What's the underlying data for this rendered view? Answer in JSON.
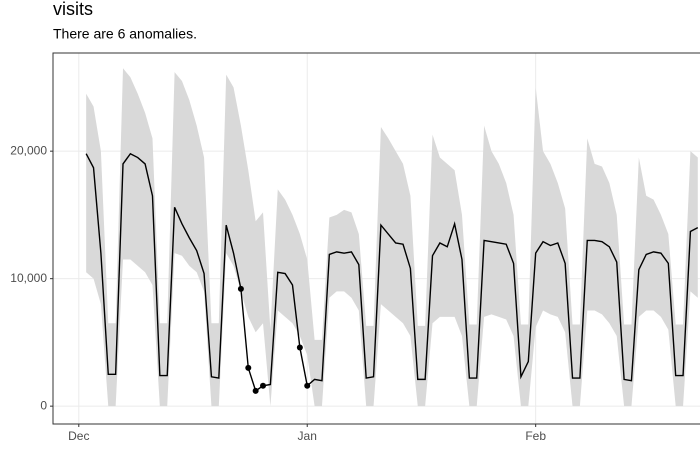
{
  "chart_data": {
    "type": "line",
    "title": "visits",
    "subtitle": "There are 6 anomalies.",
    "x": [
      1,
      2,
      3,
      4,
      5,
      6,
      7,
      8,
      9,
      10,
      11,
      12,
      13,
      14,
      15,
      16,
      17,
      18,
      19,
      20,
      21,
      22,
      23,
      24,
      25,
      26,
      27,
      28,
      29,
      30,
      31,
      32,
      33,
      34,
      35,
      36,
      37,
      38,
      39,
      40,
      41,
      42,
      43,
      44,
      45,
      46,
      47,
      48,
      49,
      50,
      51,
      52,
      53,
      54,
      55,
      56,
      57,
      58,
      59,
      60,
      61,
      62,
      63,
      64,
      65,
      66,
      67,
      68,
      69,
      70,
      71,
      72,
      73,
      74,
      75,
      76,
      77,
      78,
      79,
      80,
      81,
      82,
      83,
      84
    ],
    "series": [
      {
        "color": "#000000",
        "values": [
          19800,
          18700,
          12000,
          2500,
          2500,
          19000,
          19800,
          19500,
          19000,
          16500,
          2400,
          2400,
          15600,
          14300,
          13200,
          12200,
          10400,
          2300,
          2200,
          14200,
          12000,
          9200,
          3000,
          1200,
          1600,
          1700,
          10500,
          10400,
          9500,
          4600,
          1600,
          2100,
          2000,
          11900,
          12100,
          12000,
          12100,
          11100,
          2200,
          2300,
          14200,
          13500,
          12800,
          12700,
          10800,
          2100,
          2100,
          11800,
          12800,
          12500,
          14300,
          11500,
          2200,
          2200,
          13000,
          12900,
          12800,
          12700,
          11200,
          2300,
          3500,
          12000,
          12900,
          12600,
          12800,
          11200,
          2200,
          2200,
          13000,
          13000,
          12900,
          12500,
          11300,
          2100,
          2000,
          10700,
          11900,
          12100,
          12000,
          11200,
          2400,
          2400,
          13700,
          14000
        ]
      }
    ],
    "band": {
      "color": "#d9d9d9",
      "upper": [
        24500,
        23500,
        20000,
        6500,
        6500,
        26500,
        25800,
        24500,
        23000,
        21000,
        6500,
        6500,
        26200,
        25500,
        24000,
        22000,
        19500,
        6500,
        6500,
        26000,
        25000,
        22000,
        18500,
        14500,
        15200,
        6000,
        17000,
        16200,
        15000,
        13500,
        11500,
        5200,
        5200,
        14800,
        15000,
        15400,
        15200,
        13500,
        6300,
        6300,
        21900,
        21000,
        20000,
        19000,
        16500,
        6300,
        6300,
        21300,
        19500,
        19000,
        18500,
        15000,
        6400,
        6400,
        22000,
        20000,
        19000,
        17500,
        15000,
        6400,
        6400,
        25000,
        20000,
        19000,
        17500,
        15500,
        6400,
        6400,
        21000,
        19000,
        18800,
        17500,
        15000,
        6400,
        6400,
        19500,
        16500,
        16200,
        15000,
        13500,
        6400,
        6400,
        20000,
        19500
      ],
      "lower": [
        10500,
        10000,
        8000,
        0,
        0,
        11500,
        11500,
        11000,
        10500,
        9500,
        0,
        0,
        12000,
        11800,
        11000,
        10500,
        9000,
        0,
        0,
        12000,
        11000,
        9000,
        7000,
        5800,
        6500,
        0,
        7500,
        7000,
        6500,
        5500,
        4000,
        0,
        0,
        8500,
        9000,
        9000,
        8500,
        7500,
        0,
        0,
        8000,
        7500,
        7000,
        6500,
        5500,
        0,
        0,
        6500,
        7000,
        7000,
        7000,
        5500,
        0,
        0,
        7000,
        7200,
        7000,
        6800,
        5500,
        0,
        0,
        6200,
        7500,
        7200,
        7000,
        5800,
        0,
        0,
        7500,
        7500,
        7200,
        6500,
        5500,
        0,
        0,
        7000,
        7500,
        7500,
        7000,
        6000,
        0,
        0,
        9000,
        8500
      ]
    },
    "anomalies": {
      "color": "#000000",
      "x": [
        22,
        23,
        24,
        25,
        30,
        31
      ],
      "values": [
        9200,
        3000,
        1200,
        1600,
        4600,
        1600
      ]
    },
    "xlim": [
      -3.5,
      84.3
    ],
    "ylim": [
      -1400,
      27700
    ],
    "xticks": [
      {
        "value": 0,
        "label": "Dec"
      },
      {
        "value": 31,
        "label": "Jan"
      },
      {
        "value": 62,
        "label": "Feb"
      }
    ],
    "yticks": [
      0,
      {
        "value": 10000,
        "label": "10,000"
      },
      {
        "value": 20000,
        "label": "20,000"
      }
    ],
    "grid": true
  }
}
